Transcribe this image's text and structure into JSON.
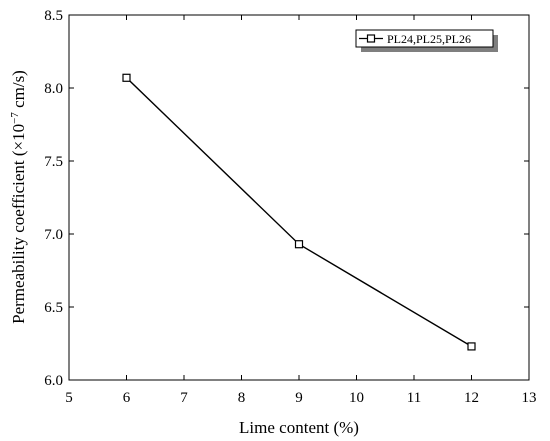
{
  "chart_data": {
    "type": "line",
    "xlabel": "Lime content (%)",
    "ylabel_main": "Permeability coefficient (×10",
    "ylabel_exp": "−7",
    "ylabel_unit": " cm/s)",
    "xlim": [
      5,
      13
    ],
    "ylim": [
      6.0,
      8.5
    ],
    "xticks": [
      5,
      6,
      7,
      8,
      9,
      10,
      11,
      12,
      13
    ],
    "yticks": [
      "6.0",
      "6.5",
      "7.0",
      "7.5",
      "8.0",
      "8.5"
    ],
    "grid": false,
    "legend_position": "top-right",
    "series": [
      {
        "name": "PL24,PL25,PL26",
        "marker": "open-square",
        "color": "#000000",
        "x": [
          6,
          9,
          12
        ],
        "y": [
          8.07,
          6.93,
          6.23
        ]
      }
    ]
  }
}
